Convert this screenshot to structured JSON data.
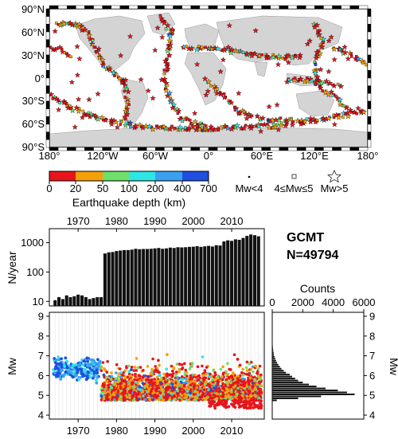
{
  "chart_data": [
    {
      "type": "map",
      "lat_ticks": [
        "90°N",
        "60°N",
        "30°N",
        "0°",
        "30°S",
        "60°S",
        "90°S"
      ],
      "lon_ticks": [
        "180°",
        "120°W",
        "60°W",
        "0°",
        "60°E",
        "120°E",
        "180°"
      ],
      "colorbar": {
        "label": "Earthquake depth (km)",
        "ticks": [
          "0",
          "20",
          "50",
          "100",
          "200",
          "400",
          "700"
        ],
        "colors": [
          "#e8141c",
          "#f5a00a",
          "#6fe06a",
          "#2ee6e6",
          "#3aa0f0",
          "#1f4fe0"
        ]
      },
      "legend": [
        {
          "symbol": "dot",
          "label": "Mw<4"
        },
        {
          "symbol": "square",
          "label": "4≤Mw≤5"
        },
        {
          "symbol": "star",
          "label": "Mw>5"
        }
      ],
      "colors": {
        "land": "#d4d4d4",
        "ocean": "#ffffff",
        "marker_edge": "#000000"
      }
    },
    {
      "type": "bar",
      "title": "GCMT",
      "subtitle": "N=49794",
      "ylabel": "N/year",
      "y_scale": "log",
      "ylim": [
        7,
        3000
      ],
      "y_ticks": [
        "10",
        "100",
        "1000"
      ],
      "xlim": [
        1962.5,
        2018.5
      ],
      "x_ticks": [
        "1970",
        "1980",
        "1990",
        "2000",
        "2010"
      ],
      "x": [
        1964,
        1965,
        1966,
        1967,
        1968,
        1969,
        1970,
        1971,
        1972,
        1973,
        1974,
        1975,
        1976,
        1977,
        1978,
        1979,
        1980,
        1981,
        1982,
        1983,
        1984,
        1985,
        1986,
        1987,
        1988,
        1989,
        1990,
        1991,
        1992,
        1993,
        1994,
        1995,
        1996,
        1997,
        1998,
        1999,
        2000,
        2001,
        2002,
        2003,
        2004,
        2005,
        2006,
        2007,
        2008,
        2009,
        2010,
        2011,
        2012,
        2013,
        2014,
        2015,
        2016,
        2017
      ],
      "values": [
        11,
        14,
        12,
        16,
        14,
        15,
        17,
        16,
        14,
        12,
        13,
        14,
        14,
        430,
        470,
        480,
        520,
        540,
        560,
        560,
        580,
        620,
        600,
        610,
        610,
        620,
        640,
        660,
        620,
        640,
        680,
        660,
        700,
        690,
        700,
        720,
        730,
        760,
        720,
        750,
        780,
        740,
        820,
        800,
        1100,
        1200,
        1150,
        1300,
        1250,
        1450,
        1700,
        1900,
        1800,
        1650
      ],
      "colors": {
        "bar": "#111111"
      }
    },
    {
      "type": "scatter",
      "ylabel": "Mw",
      "xlim": [
        1962.5,
        2018.5
      ],
      "ylim": [
        3.8,
        9.2
      ],
      "x_ticks": [
        "1970",
        "1980",
        "1990",
        "2000",
        "2010"
      ],
      "y_ticks": [
        "4",
        "5",
        "6",
        "7",
        "8",
        "9"
      ],
      "note": "points colored by earthquake depth (km) per the colorbar; early years 1964-1975 blue/cyan clusters at Mw 5.6-7.2, dense coverage 1976-2017 from Mw 4.4 to ~8.5",
      "depth_mix": [
        {
          "range": "0-20",
          "color": "#e8141c"
        },
        {
          "range": "20-50",
          "color": "#f5a00a"
        },
        {
          "range": "50-100",
          "color": "#6fe06a"
        },
        {
          "range": "100-200",
          "color": "#2ee6e6"
        },
        {
          "range": "200-400",
          "color": "#3aa0f0"
        },
        {
          "range": "400-700",
          "color": "#1f4fe0"
        }
      ]
    },
    {
      "type": "bar",
      "orientation": "horizontal",
      "title": "Counts",
      "ylabel": "Mw",
      "xlim": [
        0,
        6000
      ],
      "x_ticks": [
        "0",
        "2000",
        "4000",
        "6000"
      ],
      "y_ticks": [
        "4",
        "5",
        "6",
        "7",
        "8",
        "9"
      ],
      "bins": [
        4.7,
        4.8,
        4.9,
        5.0,
        5.1,
        5.2,
        5.3,
        5.4,
        5.5,
        5.6,
        5.7,
        5.8,
        5.9,
        6.0,
        6.1,
        6.2,
        6.3,
        6.4,
        6.5,
        6.6,
        6.7,
        6.8,
        6.9,
        7.0,
        7.1,
        7.2,
        7.3,
        7.4,
        7.5,
        7.6,
        7.7,
        7.8,
        7.9,
        8.0,
        8.1,
        8.2
      ],
      "values": [
        300,
        1700,
        3200,
        5400,
        4900,
        4300,
        3500,
        2900,
        2400,
        2000,
        1700,
        1500,
        1300,
        1150,
        900,
        750,
        600,
        500,
        400,
        320,
        250,
        200,
        150,
        110,
        90,
        70,
        50,
        40,
        30,
        20,
        15,
        10,
        8,
        5,
        4,
        3
      ]
    }
  ]
}
